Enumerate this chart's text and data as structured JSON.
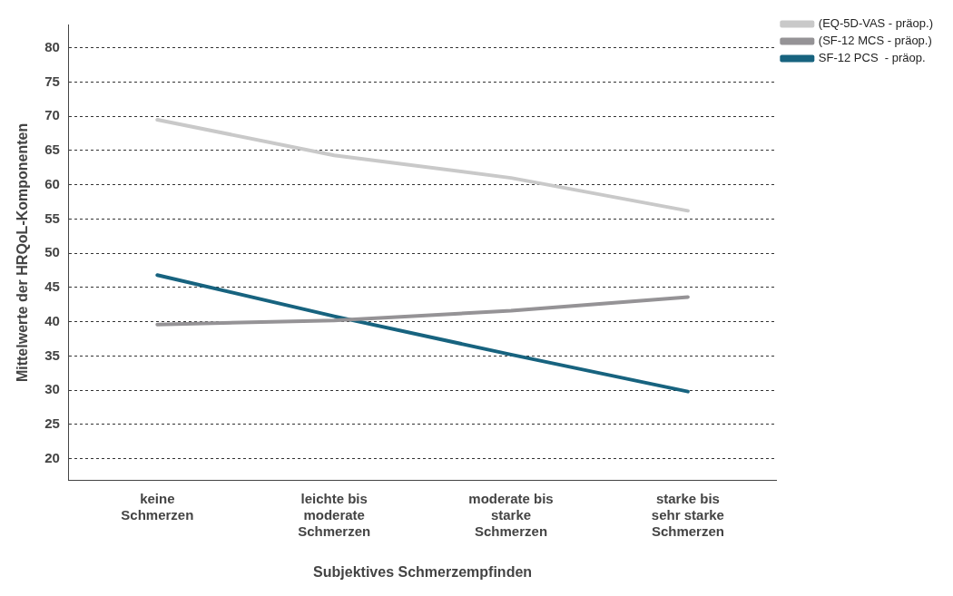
{
  "chart_data": {
    "type": "line",
    "xlabel": "Subjektives Schmerzempfinden",
    "ylabel": "Mittelwerte der HRQoL-Komponenten",
    "categories": [
      "keine\nSchmerzen",
      "leichte bis\nmoderate\nSchmerzen",
      "moderate bis\nstarke\nSchmerzen",
      "starke bis\nsehr starke\nSchmerzen"
    ],
    "series": [
      {
        "name": "(EQ-5D-VAS - präop.)",
        "color": "#c9c9c9",
        "values": [
          69.5,
          64.3,
          61,
          56.2
        ]
      },
      {
        "name": "(SF-12 MCS - präop.)",
        "color": "#959396",
        "values": [
          39.6,
          40.2,
          41.6,
          43.6
        ]
      },
      {
        "name": "SF-12 PCS  - präop.",
        "color": "#17637f",
        "values": [
          46.8,
          40.8,
          35.2,
          29.8
        ]
      }
    ],
    "ylim": [
      16.8,
      83.4
    ],
    "yticks": [
      20,
      25,
      30,
      35,
      40,
      45,
      50,
      55,
      60,
      65,
      70,
      75,
      80
    ],
    "grid": "y",
    "legend": "top right",
    "marker": "none",
    "line_style": "solid"
  }
}
